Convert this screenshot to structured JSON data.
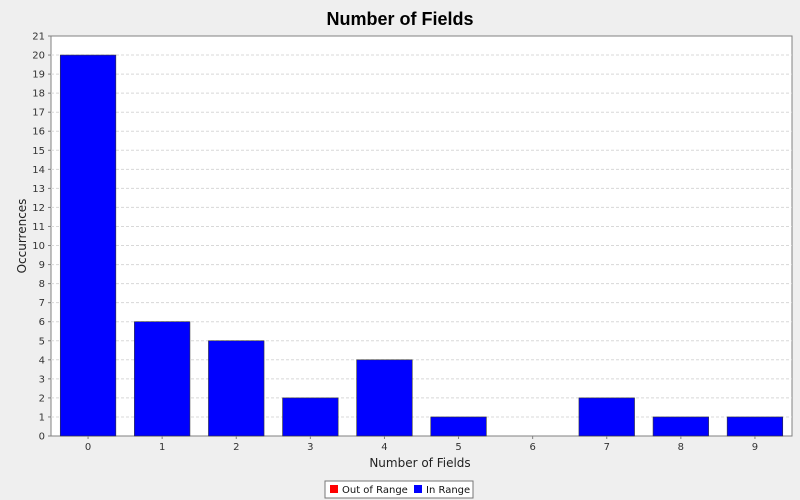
{
  "chart_data": {
    "type": "bar",
    "title": "Number of Fields",
    "xlabel": "Number of Fields",
    "ylabel": "Occurrences",
    "categories": [
      "0",
      "1",
      "2",
      "3",
      "4",
      "5",
      "6",
      "7",
      "8",
      "9"
    ],
    "series": [
      {
        "name": "Out of Range",
        "values": [
          0,
          0,
          0,
          0,
          0,
          0,
          0,
          0,
          0,
          0
        ]
      },
      {
        "name": "In Range",
        "values": [
          20,
          6,
          5,
          2,
          4,
          1,
          0,
          2,
          1,
          1
        ]
      }
    ],
    "ylim": [
      0,
      21
    ],
    "yticks": [
      "0",
      "1",
      "2",
      "3",
      "4",
      "5",
      "6",
      "7",
      "8",
      "9",
      "10",
      "11",
      "12",
      "13",
      "14",
      "15",
      "16",
      "17",
      "18",
      "19",
      "20",
      "21"
    ],
    "grid": true,
    "legend_position": "bottom",
    "colors": {
      "out_of_range": "#ff0000",
      "in_range": "#0000ff",
      "plot_background": "#ffffff",
      "page_background": "#efefef",
      "grid": "#d8d8d8"
    }
  }
}
